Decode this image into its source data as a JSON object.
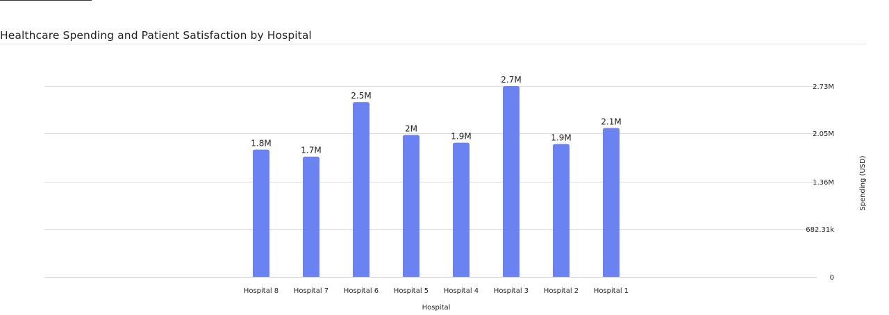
{
  "chart_data": {
    "type": "bar",
    "title": "Healthcare Spending and Patient Satisfaction by Hospital",
    "xlabel": "Hospital",
    "ylabel": "Spending (USD)",
    "categories": [
      "Hospital 8",
      "Hospital 7",
      "Hospital 6",
      "Hospital 5",
      "Hospital 4",
      "Hospital 3",
      "Hospital 2",
      "Hospital 1"
    ],
    "series": [
      {
        "values": [
          1820000,
          1720000,
          2500000,
          2030000,
          1920000,
          2730000,
          1900000,
          2130000
        ],
        "labels": [
          "1.8M",
          "1.7M",
          "2.5M",
          "2M",
          "1.9M",
          "2.7M",
          "1.9M",
          "2.1M"
        ],
        "color": "#6b83f2"
      }
    ],
    "ylim": [
      0,
      2730000
    ],
    "yticks": [
      0,
      682310,
      1360000,
      2050000,
      2730000
    ],
    "ytick_labels": [
      "0",
      "682.31k",
      "1.36M",
      "2.05M",
      "2.73M"
    ],
    "y_axis_position": "right",
    "grid": true,
    "legend": "none"
  }
}
